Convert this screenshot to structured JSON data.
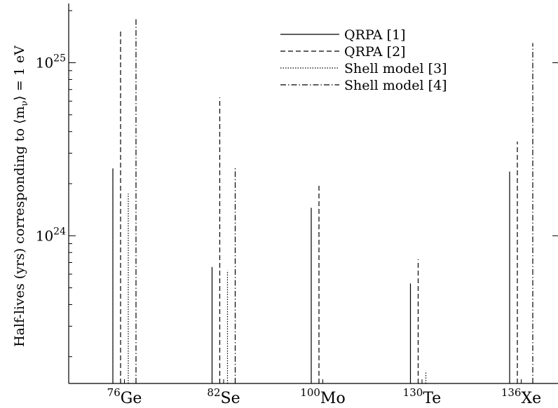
{
  "chart_data": {
    "type": "bar",
    "ylabel": "Half-lives (yrs) corresponding to",
    "ylabel_math": "⟨m",
    "ylabel_sub": "ν",
    "ylabel_tail": "⟩ = 1 eV",
    "y_scale": "log",
    "ylim": [
      1.4e+23,
      2.2e+25
    ],
    "y_ticks": [
      {
        "value": 1e+24,
        "base": "10",
        "exp": "24"
      },
      {
        "value": 1e+25,
        "base": "10",
        "exp": "25"
      }
    ],
    "categories": [
      {
        "mass": "76",
        "symbol": "Ge"
      },
      {
        "mass": "82",
        "symbol": "Se"
      },
      {
        "mass": "100",
        "symbol": "Mo"
      },
      {
        "mass": "130",
        "symbol": "Te"
      },
      {
        "mass": "136",
        "symbol": "Xe"
      }
    ],
    "series": [
      {
        "name": "QRPA [1]",
        "style": "solid",
        "values": [
          2.45e+24,
          6.6e+23,
          1.45e+24,
          5.3e+23,
          2.35e+24
        ]
      },
      {
        "name": "QRPA [2]",
        "style": "dashed",
        "values": [
          1.55e+25,
          6.3e+24,
          2e+24,
          7.3e+23,
          3.5e+24
        ]
      },
      {
        "name": "Shell model [3]",
        "style": "dotted",
        "values": [
          1.75e+24,
          6.3e+23,
          null,
          1.65e+23,
          null
        ]
      },
      {
        "name": "Shell model [4]",
        "style": "dashdot",
        "values": [
          1.8e+25,
          2.5e+24,
          null,
          null,
          1.3e+25
        ]
      }
    ],
    "grid": false,
    "legend_position": "top-right"
  }
}
